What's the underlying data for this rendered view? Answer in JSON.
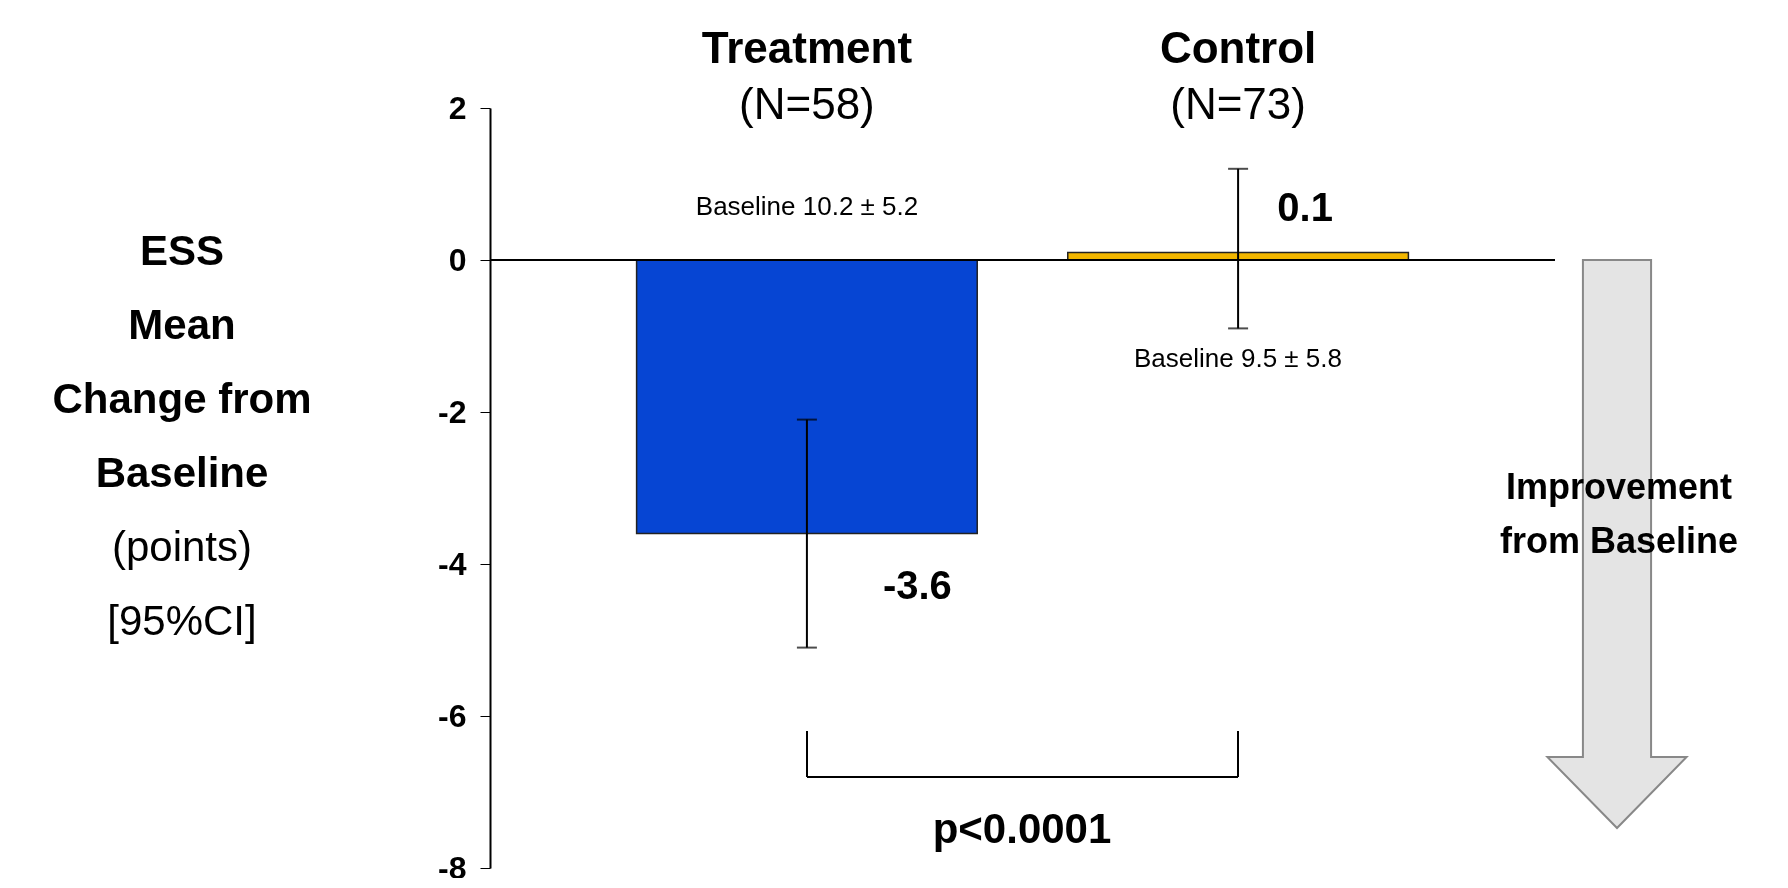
{
  "chart_data": {
    "type": "bar",
    "categories": [
      "Treatment\n(N=58)",
      "Control\n(N=73)"
    ],
    "values": [
      -3.6,
      0.1
    ],
    "colors": [
      "#0645d3",
      "#f2b600"
    ],
    "errors": [
      [
        -5.1,
        -2.1
      ],
      [
        -0.9,
        1.2
      ]
    ],
    "data_labels": true,
    "ylabel": "ESS\nMean\nChange from\nBaseline\n(points)\n[95%CI]",
    "ylim": [
      -8,
      2
    ],
    "yticks": [
      -8,
      -6,
      -4,
      -2,
      0,
      2
    ],
    "grid": false,
    "ref_lines": [
      {
        "axis": "y",
        "value": 0,
        "color": "#000000"
      }
    ],
    "annotations": [
      "Baseline 10.2 ± 5.2",
      "Baseline 9.5 ± 5.8",
      "p<0.0001",
      "Improvement\nfrom Baseline"
    ]
  }
}
